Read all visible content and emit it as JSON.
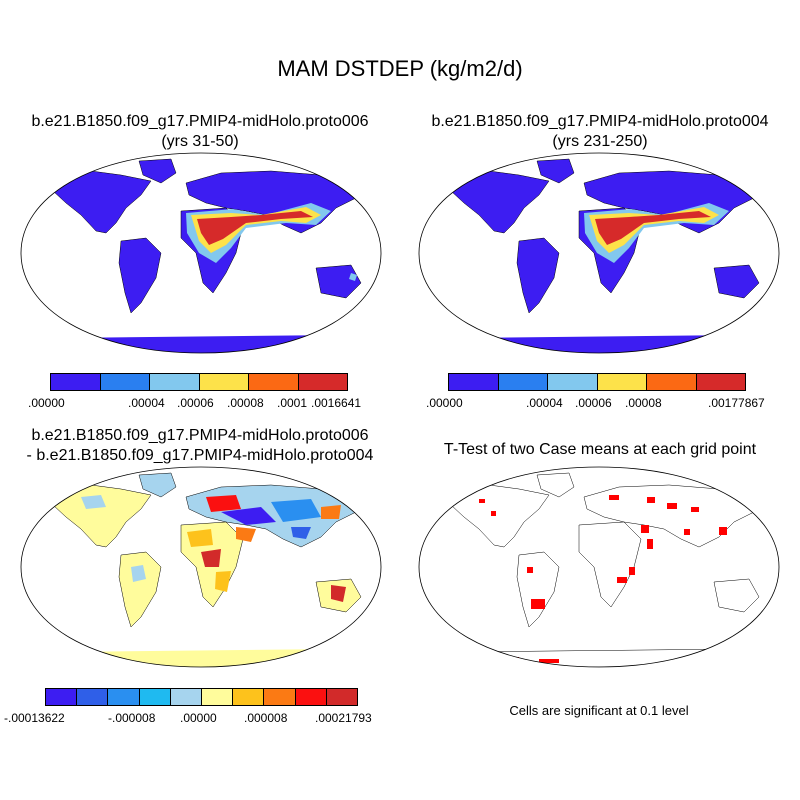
{
  "title": "MAM DSTDEP (kg/m2/d)",
  "panels": [
    {
      "title_line1": "b.e21.B1850.f09_g17.PMIP4-midHolo.proto006",
      "title_line2": "(yrs 31-50)"
    },
    {
      "title_line1": "b.e21.B1850.f09_g17.PMIP4-midHolo.proto004",
      "title_line2": "(yrs 231-250)"
    },
    {
      "title_line1": "b.e21.B1850.f09_g17.PMIP4-midHolo.proto006",
      "title_line2": "- b.e21.B1850.f09_g17.PMIP4-midHolo.proto004"
    },
    {
      "title_line1": "T-Test of two Case means at each grid point",
      "title_line2": ""
    }
  ],
  "colorbars": {
    "case1": {
      "colors": [
        "#3d1df2",
        "#2a7ff0",
        "#82c8ee",
        "#fde24a",
        "#fb6914",
        "#d62a2a"
      ],
      "labels": [
        ".00000",
        ".00004",
        ".00006",
        ".00008",
        ".0001",
        ".0016641"
      ]
    },
    "case2": {
      "colors": [
        "#3d1df2",
        "#2a7ff0",
        "#82c8ee",
        "#fde24a",
        "#fb6914",
        "#d62a2a"
      ],
      "labels": [
        ".00000",
        ".00004",
        ".00006",
        ".00008",
        ".00177867"
      ]
    },
    "diff": {
      "colors": [
        "#3d1df2",
        "#2f5fe8",
        "#2a8ff0",
        "#1fbaf0",
        "#a6d4ee",
        "#fffc9c",
        "#fdc21c",
        "#fb7a14",
        "#fb1010",
        "#d22a2a"
      ],
      "labels": [
        "-.00013622",
        "-.000008",
        ".00000",
        ".000008",
        ".00021793"
      ]
    }
  },
  "significance_note": "Cells are significant at 0.1 level",
  "colors": {
    "ocean": "#ffffff",
    "coast": "#000000",
    "significant": "#ff0000"
  }
}
